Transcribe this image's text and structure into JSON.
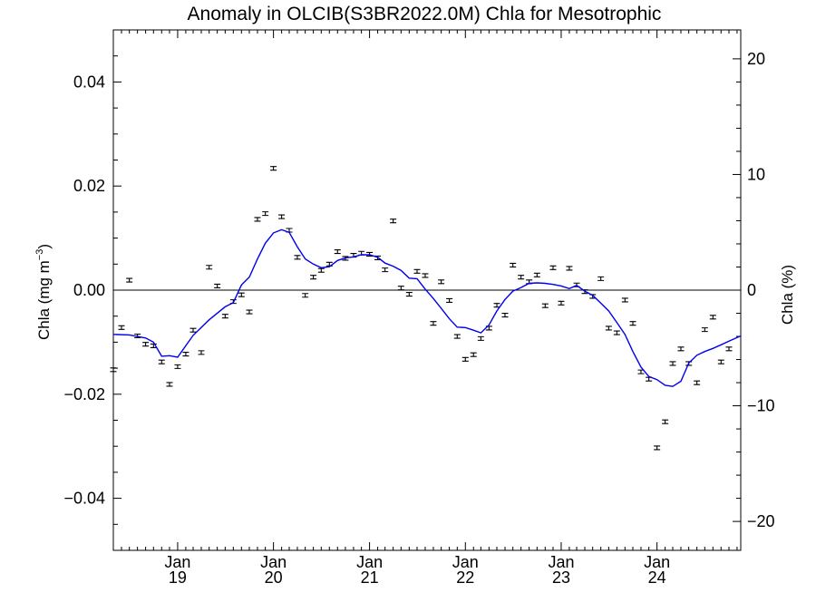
{
  "chart_data": {
    "type": "line",
    "title": "Anomaly in OLCIB(S3BR2022.0M) Chla for Mesotrophic",
    "ylabel_main": "Chla (mg m",
    "ylabel_sup": "−3",
    "ylabel_close": ")",
    "y2label": "Chla (%)",
    "xlim": [
      "2018-05-01",
      "2024-11-15"
    ],
    "ylim": [
      -0.05,
      0.05
    ],
    "y2lim": [
      -22.5,
      22.5
    ],
    "yticks": [
      -0.04,
      -0.02,
      0.0,
      0.02,
      0.04
    ],
    "ytick_labels": [
      "−0.04",
      "−0.02",
      "0.00",
      "0.02",
      "0.04"
    ],
    "y2ticks": [
      -20,
      -10,
      0,
      10,
      20
    ],
    "y2tick_labels": [
      "−20",
      "−10",
      "0",
      "10",
      "20"
    ],
    "xticks": [
      {
        "date": "2019-01-01",
        "month": "Jan",
        "year": "19"
      },
      {
        "date": "2020-01-01",
        "month": "Jan",
        "year": "20"
      },
      {
        "date": "2021-01-01",
        "month": "Jan",
        "year": "21"
      },
      {
        "date": "2022-01-01",
        "month": "Jan",
        "year": "22"
      },
      {
        "date": "2023-01-01",
        "month": "Jan",
        "year": "23"
      },
      {
        "date": "2024-01-01",
        "month": "Jan",
        "year": "24"
      }
    ],
    "zero_line": 0,
    "series": [
      {
        "kind": "points_with_error_bars",
        "color": "#000000",
        "points": [
          {
            "x": "2018-05-01",
            "y": -0.0153
          },
          {
            "x": "2018-06-01",
            "y": -0.0072
          },
          {
            "x": "2018-07-01",
            "y": 0.0019
          },
          {
            "x": "2018-08-01",
            "y": -0.0088
          },
          {
            "x": "2018-09-01",
            "y": -0.0104
          },
          {
            "x": "2018-10-01",
            "y": -0.0107
          },
          {
            "x": "2018-11-01",
            "y": -0.0138
          },
          {
            "x": "2018-12-01",
            "y": -0.0181
          },
          {
            "x": "2019-01-01",
            "y": -0.0147
          },
          {
            "x": "2019-02-01",
            "y": -0.0123
          },
          {
            "x": "2019-03-01",
            "y": -0.0077
          },
          {
            "x": "2019-04-01",
            "y": -0.012
          },
          {
            "x": "2019-05-01",
            "y": 0.0044
          },
          {
            "x": "2019-06-01",
            "y": 0.0008
          },
          {
            "x": "2019-07-01",
            "y": -0.005
          },
          {
            "x": "2019-08-01",
            "y": -0.0022
          },
          {
            "x": "2019-09-01",
            "y": -0.0009
          },
          {
            "x": "2019-10-01",
            "y": -0.0042
          },
          {
            "x": "2019-11-01",
            "y": 0.0136
          },
          {
            "x": "2019-12-01",
            "y": 0.0147
          },
          {
            "x": "2020-01-01",
            "y": 0.0234
          },
          {
            "x": "2020-02-01",
            "y": 0.0141
          },
          {
            "x": "2020-03-01",
            "y": 0.0115
          },
          {
            "x": "2020-04-01",
            "y": 0.0063
          },
          {
            "x": "2020-05-01",
            "y": -0.001
          },
          {
            "x": "2020-06-01",
            "y": 0.0025
          },
          {
            "x": "2020-07-01",
            "y": 0.0038
          },
          {
            "x": "2020-08-01",
            "y": 0.005
          },
          {
            "x": "2020-09-01",
            "y": 0.0074
          },
          {
            "x": "2020-10-01",
            "y": 0.0061
          },
          {
            "x": "2020-11-01",
            "y": 0.0067
          },
          {
            "x": "2020-12-01",
            "y": 0.0071
          },
          {
            "x": "2021-01-01",
            "y": 0.0069
          },
          {
            "x": "2021-02-01",
            "y": 0.0062
          },
          {
            "x": "2021-03-01",
            "y": 0.0039
          },
          {
            "x": "2021-04-01",
            "y": 0.0133
          },
          {
            "x": "2021-05-01",
            "y": 0.0004
          },
          {
            "x": "2021-06-01",
            "y": -0.0008
          },
          {
            "x": "2021-07-01",
            "y": 0.0036
          },
          {
            "x": "2021-08-01",
            "y": 0.0028
          },
          {
            "x": "2021-09-01",
            "y": -0.0064
          },
          {
            "x": "2021-10-01",
            "y": 0.0016
          },
          {
            "x": "2021-11-01",
            "y": -0.002
          },
          {
            "x": "2021-12-01",
            "y": -0.0089
          },
          {
            "x": "2022-01-01",
            "y": -0.0133
          },
          {
            "x": "2022-02-01",
            "y": -0.0124
          },
          {
            "x": "2022-03-01",
            "y": -0.0093
          },
          {
            "x": "2022-04-01",
            "y": -0.0073
          },
          {
            "x": "2022-05-01",
            "y": -0.0029
          },
          {
            "x": "2022-06-01",
            "y": -0.0048
          },
          {
            "x": "2022-07-01",
            "y": 0.0048
          },
          {
            "x": "2022-08-01",
            "y": 0.0025
          },
          {
            "x": "2022-09-01",
            "y": 0.0016
          },
          {
            "x": "2022-10-01",
            "y": 0.0029
          },
          {
            "x": "2022-11-01",
            "y": -0.003
          },
          {
            "x": "2022-12-01",
            "y": 0.0043
          },
          {
            "x": "2023-01-01",
            "y": -0.0025
          },
          {
            "x": "2023-02-01",
            "y": 0.0042
          },
          {
            "x": "2023-03-01",
            "y": 0.001
          },
          {
            "x": "2023-04-01",
            "y": -0.0003
          },
          {
            "x": "2023-05-01",
            "y": -0.0012
          },
          {
            "x": "2023-06-01",
            "y": 0.0022
          },
          {
            "x": "2023-07-01",
            "y": -0.0073
          },
          {
            "x": "2023-08-01",
            "y": -0.0082
          },
          {
            "x": "2023-09-01",
            "y": -0.0019
          },
          {
            "x": "2023-10-01",
            "y": -0.0064
          },
          {
            "x": "2023-11-01",
            "y": -0.0157
          },
          {
            "x": "2023-12-01",
            "y": -0.0171
          },
          {
            "x": "2024-01-01",
            "y": -0.0303
          },
          {
            "x": "2024-02-01",
            "y": -0.0253
          },
          {
            "x": "2024-03-01",
            "y": -0.0141
          },
          {
            "x": "2024-04-01",
            "y": -0.0113
          },
          {
            "x": "2024-05-01",
            "y": -0.0141
          },
          {
            "x": "2024-06-01",
            "y": -0.0178
          },
          {
            "x": "2024-07-01",
            "y": -0.0076
          },
          {
            "x": "2024-08-01",
            "y": -0.0052
          },
          {
            "x": "2024-09-01",
            "y": -0.0138
          },
          {
            "x": "2024-10-01",
            "y": -0.0113
          }
        ]
      },
      {
        "kind": "line",
        "color": "#0000ee",
        "points": [
          {
            "x": "2018-05-01",
            "y": -0.0085
          },
          {
            "x": "2018-07-01",
            "y": -0.0086
          },
          {
            "x": "2018-09-01",
            "y": -0.0092
          },
          {
            "x": "2018-10-01",
            "y": -0.01
          },
          {
            "x": "2018-11-01",
            "y": -0.0127
          },
          {
            "x": "2018-12-01",
            "y": -0.0126
          },
          {
            "x": "2019-01-01",
            "y": -0.0129
          },
          {
            "x": "2019-03-01",
            "y": -0.0087
          },
          {
            "x": "2019-05-01",
            "y": -0.0057
          },
          {
            "x": "2019-07-01",
            "y": -0.0032
          },
          {
            "x": "2019-08-01",
            "y": -0.0024
          },
          {
            "x": "2019-09-01",
            "y": 0.001
          },
          {
            "x": "2019-10-01",
            "y": 0.0025
          },
          {
            "x": "2019-11-01",
            "y": 0.006
          },
          {
            "x": "2019-12-01",
            "y": 0.009
          },
          {
            "x": "2020-01-01",
            "y": 0.011
          },
          {
            "x": "2020-02-01",
            "y": 0.0116
          },
          {
            "x": "2020-03-01",
            "y": 0.0111
          },
          {
            "x": "2020-04-01",
            "y": 0.0083
          },
          {
            "x": "2020-05-01",
            "y": 0.006
          },
          {
            "x": "2020-06-01",
            "y": 0.005
          },
          {
            "x": "2020-07-01",
            "y": 0.0043
          },
          {
            "x": "2020-08-01",
            "y": 0.0045
          },
          {
            "x": "2020-09-01",
            "y": 0.0057
          },
          {
            "x": "2020-10-01",
            "y": 0.0062
          },
          {
            "x": "2020-11-01",
            "y": 0.0064
          },
          {
            "x": "2020-12-01",
            "y": 0.0068
          },
          {
            "x": "2021-01-01",
            "y": 0.0068
          },
          {
            "x": "2021-02-01",
            "y": 0.0063
          },
          {
            "x": "2021-03-01",
            "y": 0.0052
          },
          {
            "x": "2021-04-01",
            "y": 0.0046
          },
          {
            "x": "2021-05-01",
            "y": 0.0038
          },
          {
            "x": "2021-06-01",
            "y": 0.0023
          },
          {
            "x": "2021-07-01",
            "y": 0.0022
          },
          {
            "x": "2021-08-01",
            "y": 0.0002
          },
          {
            "x": "2021-09-01",
            "y": -0.0016
          },
          {
            "x": "2021-10-01",
            "y": -0.0035
          },
          {
            "x": "2021-11-01",
            "y": -0.0055
          },
          {
            "x": "2021-12-01",
            "y": -0.0071
          },
          {
            "x": "2022-01-01",
            "y": -0.0072
          },
          {
            "x": "2022-02-01",
            "y": -0.0077
          },
          {
            "x": "2022-03-01",
            "y": -0.0082
          },
          {
            "x": "2022-04-01",
            "y": -0.0067
          },
          {
            "x": "2022-05-01",
            "y": -0.004
          },
          {
            "x": "2022-06-01",
            "y": -0.0018
          },
          {
            "x": "2022-07-01",
            "y": -0.0002
          },
          {
            "x": "2022-08-01",
            "y": 0.0005
          },
          {
            "x": "2022-09-01",
            "y": 0.0013
          },
          {
            "x": "2022-10-01",
            "y": 0.0014
          },
          {
            "x": "2022-11-01",
            "y": 0.0013
          },
          {
            "x": "2022-12-01",
            "y": 0.0011
          },
          {
            "x": "2023-01-01",
            "y": 0.0008
          },
          {
            "x": "2023-02-01",
            "y": 0.0003
          },
          {
            "x": "2023-03-01",
            "y": 0.0009
          },
          {
            "x": "2023-04-01",
            "y": -0.0002
          },
          {
            "x": "2023-05-01",
            "y": -0.001
          },
          {
            "x": "2023-06-01",
            "y": -0.0025
          },
          {
            "x": "2023-07-01",
            "y": -0.004
          },
          {
            "x": "2023-08-01",
            "y": -0.0062
          },
          {
            "x": "2023-09-01",
            "y": -0.0085
          },
          {
            "x": "2023-10-01",
            "y": -0.0118
          },
          {
            "x": "2023-11-01",
            "y": -0.0148
          },
          {
            "x": "2023-12-01",
            "y": -0.0166
          },
          {
            "x": "2024-01-01",
            "y": -0.0172
          },
          {
            "x": "2024-02-01",
            "y": -0.0183
          },
          {
            "x": "2024-03-01",
            "y": -0.0185
          },
          {
            "x": "2024-04-01",
            "y": -0.0175
          },
          {
            "x": "2024-05-01",
            "y": -0.014
          },
          {
            "x": "2024-06-01",
            "y": -0.0125
          },
          {
            "x": "2024-07-01",
            "y": -0.0118
          },
          {
            "x": "2024-08-01",
            "y": -0.0112
          },
          {
            "x": "2024-09-01",
            "y": -0.0105
          },
          {
            "x": "2024-10-01",
            "y": -0.0098
          },
          {
            "x": "2024-11-15",
            "y": -0.0088
          }
        ]
      }
    ]
  }
}
